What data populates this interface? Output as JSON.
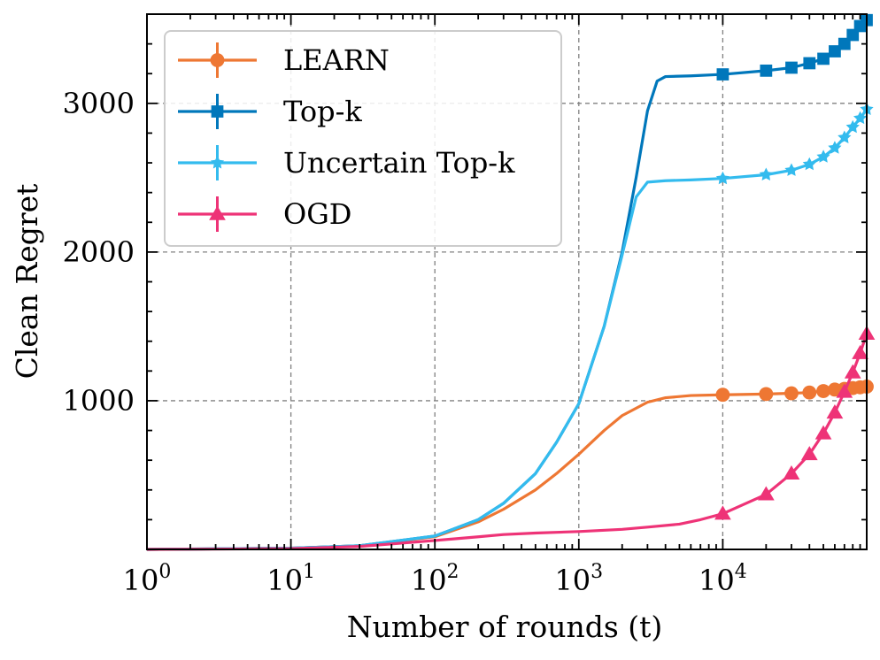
{
  "chart_data": {
    "type": "line",
    "xscale": "log",
    "xlabel": "Number of rounds (t)",
    "ylabel": "Clean Regret",
    "xlim": [
      1,
      100000
    ],
    "ylim": [
      0,
      3600
    ],
    "grid": true,
    "grid_style": "dashed",
    "legend_position": "top-left",
    "x_ticks": [
      {
        "value": 1,
        "base": "10",
        "exp": "0"
      },
      {
        "value": 10,
        "base": "10",
        "exp": "1"
      },
      {
        "value": 100,
        "base": "10",
        "exp": "2"
      },
      {
        "value": 1000,
        "base": "10",
        "exp": "3"
      },
      {
        "value": 10000,
        "base": "10",
        "exp": "4"
      }
    ],
    "y_ticks": [
      {
        "value": 1000,
        "label": "1000"
      },
      {
        "value": 2000,
        "label": "2000"
      },
      {
        "value": 3000,
        "label": "3000"
      }
    ],
    "series": [
      {
        "name": "LEARN",
        "color": "#EE7733",
        "marker": "circle",
        "x": [
          1,
          10,
          30,
          100,
          200,
          300,
          500,
          700,
          1000,
          1500,
          2000,
          3000,
          4000,
          6000,
          10000,
          20000,
          30000,
          40000,
          50000,
          60000,
          70000,
          80000,
          90000,
          100000
        ],
        "y": [
          0,
          8,
          25,
          85,
          185,
          270,
          400,
          510,
          640,
          800,
          900,
          990,
          1020,
          1035,
          1040,
          1045,
          1050,
          1055,
          1065,
          1075,
          1080,
          1085,
          1090,
          1095
        ]
      },
      {
        "name": "Top-k",
        "color": "#0077BB",
        "marker": "square",
        "x": [
          1,
          10,
          30,
          100,
          200,
          300,
          500,
          700,
          1000,
          1500,
          2000,
          2500,
          3000,
          3500,
          4000,
          6000,
          10000,
          20000,
          30000,
          40000,
          50000,
          60000,
          70000,
          80000,
          90000,
          100000
        ],
        "y": [
          0,
          8,
          25,
          90,
          200,
          310,
          510,
          720,
          980,
          1500,
          2000,
          2500,
          2950,
          3150,
          3180,
          3185,
          3195,
          3220,
          3240,
          3270,
          3300,
          3350,
          3400,
          3460,
          3520,
          3560
        ]
      },
      {
        "name": "Uncertain Top-k",
        "color": "#33BBEE",
        "marker": "star",
        "x": [
          1,
          10,
          30,
          100,
          200,
          300,
          500,
          700,
          1000,
          1500,
          2000,
          2500,
          3000,
          4000,
          6000,
          10000,
          20000,
          30000,
          40000,
          50000,
          60000,
          70000,
          80000,
          90000,
          100000
        ],
        "y": [
          0,
          8,
          25,
          90,
          200,
          310,
          510,
          720,
          980,
          1500,
          1980,
          2370,
          2470,
          2480,
          2485,
          2495,
          2520,
          2550,
          2590,
          2640,
          2700,
          2770,
          2840,
          2900,
          2960
        ]
      },
      {
        "name": "OGD",
        "color": "#EE3377",
        "marker": "triangle",
        "x": [
          1,
          10,
          30,
          100,
          200,
          300,
          500,
          700,
          1000,
          2000,
          3000,
          5000,
          7000,
          10000,
          20000,
          30000,
          40000,
          50000,
          60000,
          70000,
          80000,
          90000,
          100000
        ],
        "y": [
          0,
          5,
          20,
          60,
          85,
          100,
          110,
          115,
          120,
          135,
          150,
          170,
          200,
          240,
          370,
          510,
          640,
          780,
          920,
          1060,
          1190,
          1320,
          1450
        ]
      }
    ]
  }
}
